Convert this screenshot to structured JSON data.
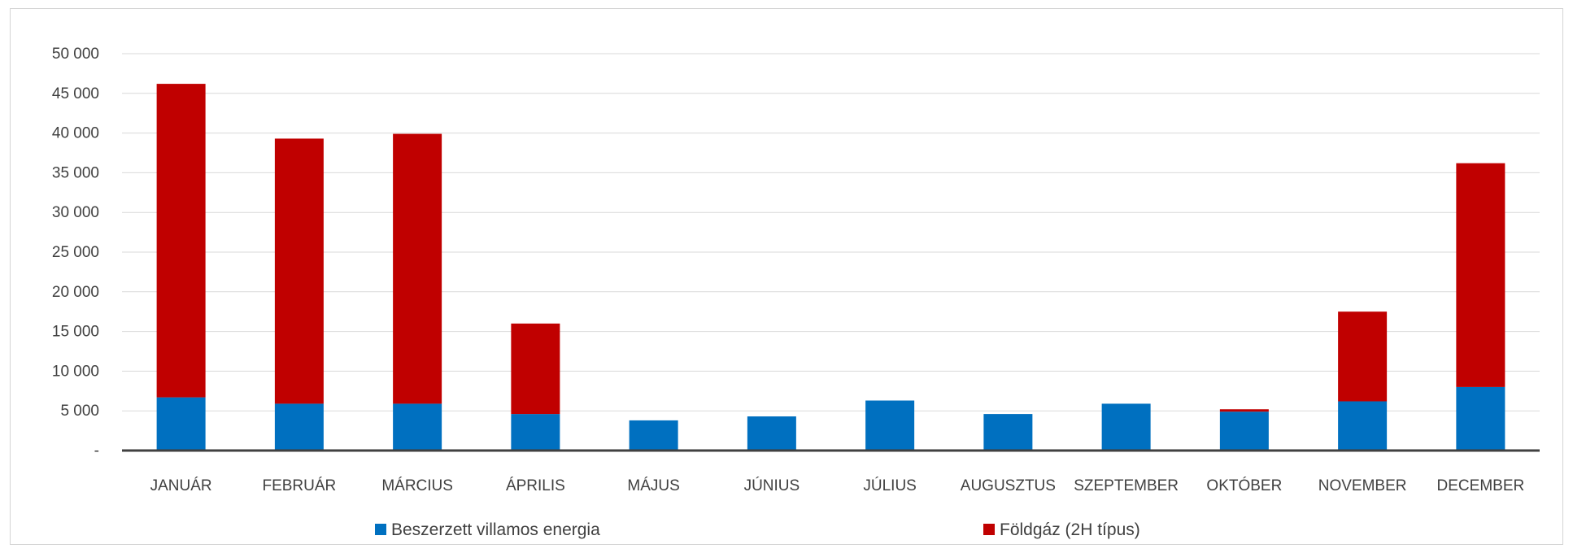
{
  "chart_data": {
    "type": "bar",
    "stacked": true,
    "categories": [
      "JANUÁR",
      "FEBRUÁR",
      "MÁRCIUS",
      "ÁPRILIS",
      "MÁJUS",
      "JÚNIUS",
      "JÚLIUS",
      "AUGUSZTUS",
      "SZEPTEMBER",
      "OKTÓBER",
      "NOVEMBER",
      "DECEMBER"
    ],
    "series": [
      {
        "name": "Beszerzett villamos energia",
        "color": "#0070c0",
        "values": [
          6700,
          5900,
          5900,
          4600,
          3800,
          4300,
          6300,
          4600,
          5900,
          4900,
          6200,
          8000
        ]
      },
      {
        "name": "Földgáz (2H típus)",
        "color": "#c00000",
        "values": [
          39500,
          33400,
          34000,
          11400,
          0,
          0,
          0,
          0,
          0,
          300,
          11300,
          28200
        ]
      }
    ],
    "ylim": [
      0,
      50000
    ],
    "yticks": [
      {
        "value": 0,
        "label": "-"
      },
      {
        "value": 5000,
        "label": "5 000"
      },
      {
        "value": 10000,
        "label": "10 000"
      },
      {
        "value": 15000,
        "label": "15 000"
      },
      {
        "value": 20000,
        "label": "20 000"
      },
      {
        "value": 25000,
        "label": "25 000"
      },
      {
        "value": 30000,
        "label": "30 000"
      },
      {
        "value": 35000,
        "label": "35 000"
      },
      {
        "value": 40000,
        "label": "40 000"
      },
      {
        "value": 45000,
        "label": "45 000"
      },
      {
        "value": 50000,
        "label": "50 000"
      }
    ],
    "grid": true,
    "legend_position": "bottom"
  }
}
